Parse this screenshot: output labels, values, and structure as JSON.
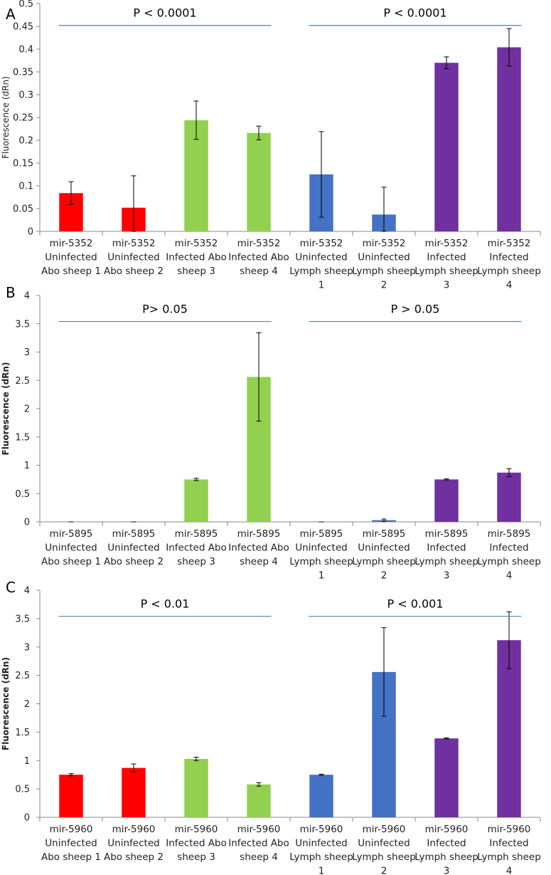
{
  "colors": {
    "red": "#ff0000",
    "green": "#92d050",
    "blue": "#4472c4",
    "purple": "#7030a0",
    "pline": "#4f81bd",
    "axis": "#888888"
  },
  "chart_data": [
    {
      "panel": "A",
      "type": "bar",
      "ylabel": "Fluorescence (dRn)",
      "ylim": [
        0,
        0.5
      ],
      "yticks": [
        "0",
        "0.05",
        "0.1",
        "0.15",
        "0.2",
        "0.25",
        "0.3",
        "0.35",
        "0.4",
        "0.45",
        "0.5"
      ],
      "categories": [
        [
          "mir-5352",
          "Uninfected",
          "Abo sheep 1"
        ],
        [
          "mir-5352",
          "Uninfected",
          "Abo sheep 2"
        ],
        [
          "mir-5352",
          "Infected Abo",
          "sheep 3"
        ],
        [
          "mir-5352",
          "Infected Abo",
          "sheep 4"
        ],
        [
          "mir-5352",
          "Uninfected",
          "Lymph sheep",
          "1"
        ],
        [
          "mir-5352",
          "Uninfected",
          "Lymph sheep",
          "2"
        ],
        [
          "mir-5352",
          "Infected",
          "Lymph sheep",
          "3"
        ],
        [
          "mir-5352",
          "Infected",
          "Lymph sheep",
          "4"
        ]
      ],
      "values": [
        0.084,
        0.052,
        0.244,
        0.216,
        0.125,
        0.037,
        0.37,
        0.404
      ],
      "errors": [
        0.025,
        0.07,
        0.042,
        0.015,
        0.094,
        0.06,
        0.013,
        0.041
      ],
      "colors": [
        "red",
        "red",
        "green",
        "green",
        "blue",
        "blue",
        "purple",
        "purple"
      ],
      "annotations": [
        {
          "text": "P < 0.0001",
          "from": 0,
          "to": 3,
          "y": 0.452
        },
        {
          "text": "P < 0.0001",
          "from": 4,
          "to": 7,
          "y": 0.452
        }
      ]
    },
    {
      "panel": "B",
      "type": "bar",
      "ylabel": "Fluorescence (dRn)",
      "ylim": [
        0,
        4
      ],
      "yticks": [
        "0",
        "0.5",
        "1",
        "1.5",
        "2",
        "2.5",
        "3",
        "3.5",
        "4"
      ],
      "categories": [
        [
          "mir-5895",
          "Uninfected",
          "Abo sheep 1"
        ],
        [
          "mir-5895",
          "Uninfected",
          "Abo sheep 2"
        ],
        [
          "mir-5895",
          "Infected Abo",
          "sheep 3"
        ],
        [
          "mir-5895",
          "Infected Abo",
          "sheep 4"
        ],
        [
          "mir-5895",
          "Uninfected",
          "Lymph sheep",
          "1"
        ],
        [
          "mir-5895",
          "Uninfected",
          "Lymph sheep",
          "2"
        ],
        [
          "mir-5895",
          "Infected",
          "Lymph sheep",
          "3"
        ],
        [
          "mir-5895",
          "Infected",
          "Lymph sheep",
          "4"
        ]
      ],
      "values": [
        0.0,
        0.0,
        0.75,
        2.56,
        0.0,
        0.03,
        0.75,
        0.87
      ],
      "errors": [
        0.0,
        0.0,
        0.02,
        0.78,
        0.0,
        0.02,
        0.01,
        0.07
      ],
      "colors": [
        "red",
        "red",
        "green",
        "green",
        "blue",
        "blue",
        "purple",
        "purple"
      ],
      "annotations": [
        {
          "text": "P> 0.05",
          "from": 0,
          "to": 3,
          "y": 3.54
        },
        {
          "text": "P > 0.05",
          "from": 4,
          "to": 7,
          "y": 3.54
        }
      ]
    },
    {
      "panel": "C",
      "type": "bar",
      "ylabel": "Fluorescence (dRn)",
      "ylim": [
        0,
        4
      ],
      "yticks": [
        "0",
        "0.5",
        "1",
        "1.5",
        "2",
        "2.5",
        "3",
        "3.5",
        "4"
      ],
      "categories": [
        [
          "mir-5960",
          "Uninfected",
          "Abo sheep 1"
        ],
        [
          "mir-5960",
          "Uninfected",
          "Abo  sheep 2"
        ],
        [
          "mir-5960",
          "Infected Abo",
          "sheep 3"
        ],
        [
          "mir-5960",
          "Infected Abo",
          "sheep 4"
        ],
        [
          "mir-5960",
          "Uninfected",
          "Lymph  sheep",
          "1"
        ],
        [
          "mir-5960",
          "Uninfected",
          "Lymph sheep",
          "2"
        ],
        [
          "mir-5960",
          "Infected",
          "Lymph sheep",
          "3"
        ],
        [
          "mir-5960",
          "Infected",
          "Lymph sheep",
          "4"
        ]
      ],
      "values": [
        0.75,
        0.87,
        1.03,
        0.58,
        0.75,
        2.56,
        1.39,
        3.12
      ],
      "errors": [
        0.02,
        0.07,
        0.03,
        0.03,
        0.01,
        0.78,
        0.01,
        0.5
      ],
      "colors": [
        "red",
        "red",
        "green",
        "green",
        "blue",
        "blue",
        "purple",
        "purple"
      ],
      "annotations": [
        {
          "text": "P < 0.01",
          "from": 0,
          "to": 3,
          "y": 3.54
        },
        {
          "text": "P <  0.001",
          "from": 4,
          "to": 7,
          "y": 3.54
        }
      ]
    }
  ]
}
